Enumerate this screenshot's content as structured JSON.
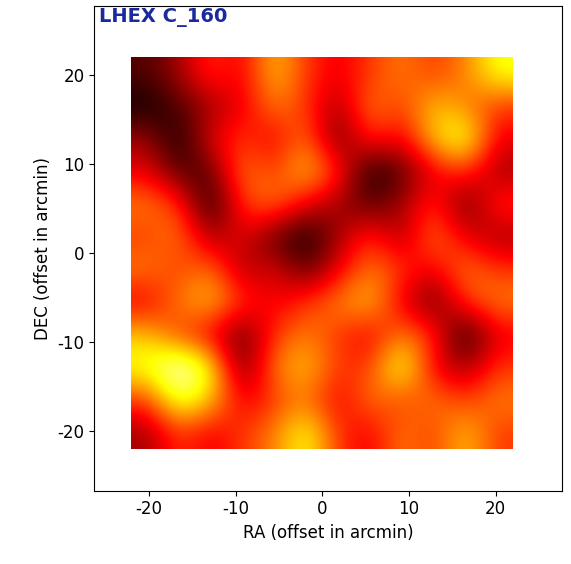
{
  "chart_data": {
    "type": "heatmap",
    "title": "LHEX C_160",
    "x_label": "RA (offset in arcmin)",
    "y_label": "DEC (offset in arcmin)",
    "xlim": [
      -26.3,
      27.7
    ],
    "ylim": [
      -26.7,
      27.8
    ],
    "xticks": [
      -20,
      -10,
      0,
      10,
      20
    ],
    "yticks": [
      -20,
      -10,
      0,
      10,
      20
    ],
    "x_extent": [
      -22,
      22
    ],
    "y_extent": [
      -22,
      22
    ],
    "color": "hot",
    "title_color": "#1a2a9a",
    "cells": [
      [
        0.2,
        0.3,
        0.5,
        0.4,
        0.7,
        0.5,
        0.4,
        0.5,
        0.6,
        0.5,
        0.6,
        0.8
      ],
      [
        0.1,
        0.2,
        0.3,
        0.4,
        0.6,
        0.5,
        0.3,
        0.6,
        0.5,
        0.7,
        0.6,
        0.5
      ],
      [
        0.3,
        0.1,
        0.4,
        0.5,
        0.4,
        0.6,
        0.2,
        0.5,
        0.4,
        0.7,
        0.85,
        0.4
      ],
      [
        0.4,
        0.2,
        0.2,
        0.6,
        0.5,
        0.7,
        0.5,
        0.1,
        0.2,
        0.4,
        0.5,
        0.3
      ],
      [
        0.6,
        0.5,
        0.1,
        0.5,
        0.6,
        0.4,
        0.3,
        0.2,
        0.3,
        0.5,
        0.2,
        0.5
      ],
      [
        0.5,
        0.6,
        0.3,
        0.4,
        0.2,
        0.1,
        0.3,
        0.5,
        0.3,
        0.6,
        0.4,
        0.3
      ],
      [
        0.6,
        0.5,
        0.6,
        0.3,
        0.4,
        0.2,
        0.4,
        0.6,
        0.5,
        0.4,
        0.6,
        0.5
      ],
      [
        0.4,
        0.6,
        0.7,
        0.5,
        0.4,
        0.5,
        0.6,
        0.7,
        0.4,
        0.2,
        0.5,
        0.6
      ],
      [
        0.7,
        0.5,
        0.4,
        0.2,
        0.5,
        0.6,
        0.5,
        0.4,
        0.6,
        0.5,
        0.1,
        0.4
      ],
      [
        0.8,
        1.0,
        0.8,
        0.2,
        0.6,
        0.7,
        0.5,
        0.5,
        0.85,
        0.4,
        0.3,
        0.5
      ],
      [
        0.5,
        0.85,
        0.7,
        0.4,
        0.5,
        0.6,
        0.4,
        0.6,
        0.5,
        0.6,
        0.5,
        0.6
      ],
      [
        0.3,
        0.5,
        0.4,
        0.5,
        0.6,
        0.8,
        0.5,
        0.4,
        0.6,
        0.5,
        0.7,
        0.5
      ]
    ]
  }
}
